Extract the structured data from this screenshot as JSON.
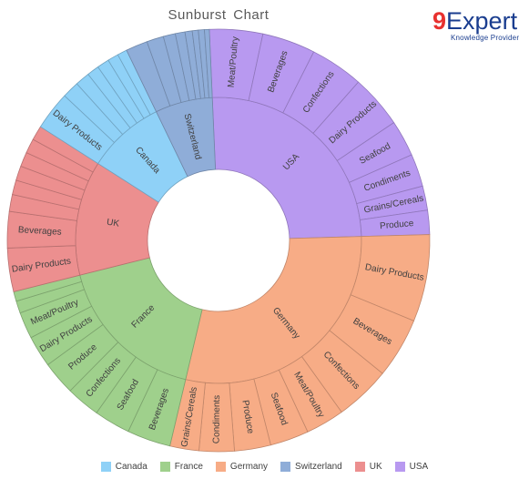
{
  "title": "Sunburst  Chart",
  "logo": {
    "main_nine": "9",
    "main_rest": "Expert",
    "sub": "Knowledge Provider"
  },
  "chart_data": {
    "type": "sunburst",
    "title": "Sunburst  Chart",
    "legend_position": "bottom",
    "colors": {
      "Canada": "#8fd1f7",
      "France": "#9fd08c",
      "Germany": "#f7ac86",
      "Switzerland": "#8fadd8",
      "UK": "#ec8f8f",
      "USA": "#b899f0"
    },
    "legend": [
      "Canada",
      "France",
      "Germany",
      "Switzerland",
      "UK",
      "USA"
    ],
    "countries": [
      {
        "name": "USA",
        "children": [
          {
            "name": "Meat/Poultry",
            "value": 4.4
          },
          {
            "name": "Beverages",
            "value": 4.4
          },
          {
            "name": "Confections",
            "value": 4.4
          },
          {
            "name": "Dairy Products",
            "value": 4.4
          },
          {
            "name": "Seafood",
            "value": 3.0
          },
          {
            "name": "Condiments",
            "value": 2.7
          },
          {
            "name": "Grains/Cereals",
            "value": 2.0
          },
          {
            "name": "Produce",
            "value": 2.0
          }
        ]
      },
      {
        "name": "Germany",
        "children": [
          {
            "name": "Dairy Products",
            "value": 7.2
          },
          {
            "name": "Beverages",
            "value": 5.0
          },
          {
            "name": "Confections",
            "value": 4.6
          },
          {
            "name": "Meat/Poultry",
            "value": 3.2
          },
          {
            "name": "Seafood",
            "value": 3.2
          },
          {
            "name": "Produce",
            "value": 3.0
          },
          {
            "name": "Condiments",
            "value": 2.9
          },
          {
            "name": "Grains/Cereals",
            "value": 2.4
          }
        ]
      },
      {
        "name": "France",
        "children": [
          {
            "name": "Beverages",
            "value": 3.6
          },
          {
            "name": "Seafood",
            "value": 3.0
          },
          {
            "name": "Confections",
            "value": 2.8
          },
          {
            "name": "Produce",
            "value": 2.8
          },
          {
            "name": "Dairy Products",
            "value": 2.6
          },
          {
            "name": "Meat/Poultry",
            "value": 2.2
          },
          {
            "name": "",
            "value": 1.0
          },
          {
            "name": "",
            "value": 0.8
          }
        ]
      },
      {
        "name": "UK",
        "children": [
          {
            "name": "Dairy Products",
            "value": 3.6
          },
          {
            "name": "Beverages",
            "value": 3.0
          },
          {
            "name": "",
            "value": 1.4
          },
          {
            "name": "",
            "value": 1.2
          },
          {
            "name": "",
            "value": 1.2
          },
          {
            "name": "",
            "value": 1.2
          },
          {
            "name": "",
            "value": 1.2
          },
          {
            "name": "",
            "value": 1.2
          }
        ]
      },
      {
        "name": "Canada",
        "children": [
          {
            "name": "Dairy Products",
            "value": 3.2
          },
          {
            "name": "",
            "value": 1.4
          },
          {
            "name": "",
            "value": 1.2
          },
          {
            "name": "",
            "value": 1.0
          },
          {
            "name": "",
            "value": 1.0
          },
          {
            "name": "",
            "value": 0.9
          },
          {
            "name": "",
            "value": 0.8
          }
        ]
      },
      {
        "name": "Switzerland",
        "children": [
          {
            "name": "",
            "value": 1.8
          },
          {
            "name": "",
            "value": 1.4
          },
          {
            "name": "",
            "value": 1.0
          },
          {
            "name": "",
            "value": 0.8
          },
          {
            "name": "",
            "value": 0.6
          },
          {
            "name": "",
            "value": 0.5
          },
          {
            "name": "",
            "value": 0.5
          },
          {
            "name": "",
            "value": 0.4
          }
        ]
      }
    ]
  }
}
